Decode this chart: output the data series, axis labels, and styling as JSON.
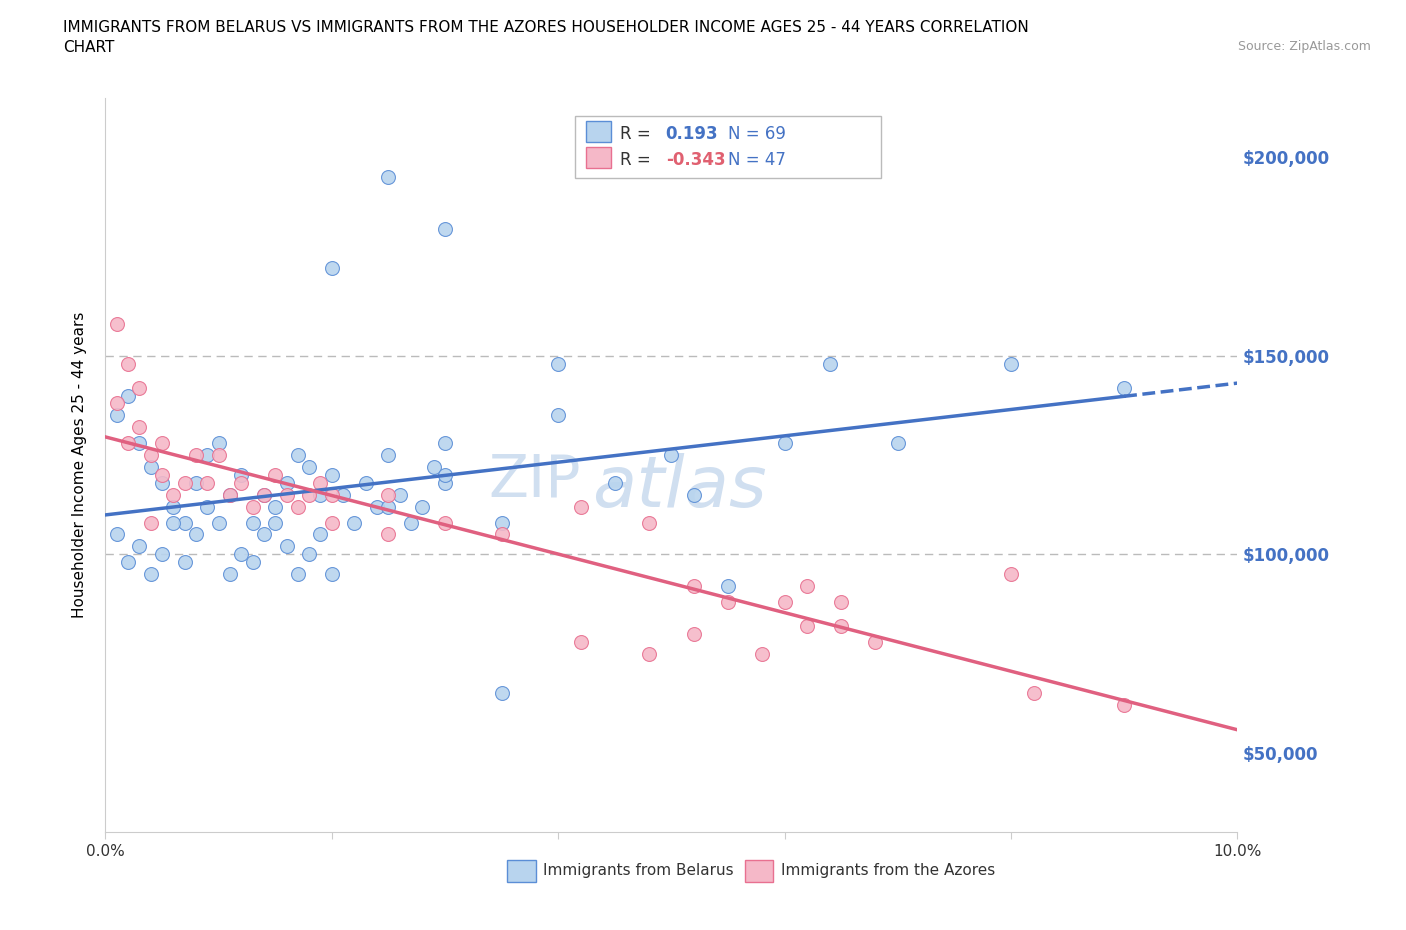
{
  "title_line1": "IMMIGRANTS FROM BELARUS VS IMMIGRANTS FROM THE AZORES HOUSEHOLDER INCOME AGES 25 - 44 YEARS CORRELATION",
  "title_line2": "CHART",
  "source": "Source: ZipAtlas.com",
  "ylabel": "Householder Income Ages 25 - 44 years",
  "xlim": [
    0.0,
    0.1
  ],
  "ylim": [
    30000,
    215000
  ],
  "yticks": [
    50000,
    100000,
    150000,
    200000
  ],
  "ytick_labels": [
    "$50,000",
    "$100,000",
    "$150,000",
    "$200,000"
  ],
  "xticks": [
    0.0,
    0.02,
    0.04,
    0.06,
    0.08,
    0.1
  ],
  "xtick_labels": [
    "0.0%",
    "",
    "",
    "",
    "",
    "10.0%"
  ],
  "r_belarus": 0.193,
  "n_belarus": 69,
  "r_azores": -0.343,
  "n_azores": 47,
  "color_belarus_fill": "#b8d4ee",
  "color_azores_fill": "#f5b8c8",
  "color_belarus_edge": "#5b8ed6",
  "color_azores_edge": "#e87090",
  "color_belarus_line": "#4472c4",
  "color_azores_line": "#e06080",
  "color_legend_r_blue": "#4472c4",
  "color_legend_r_pink": "#e06070",
  "color_legend_n": "#4472c4",
  "color_ytick_labels": "#4472c4",
  "color_watermark": "#d0dff0",
  "scatter_belarus_x": [
    0.001,
    0.002,
    0.003,
    0.004,
    0.005,
    0.006,
    0.007,
    0.008,
    0.009,
    0.01,
    0.011,
    0.012,
    0.013,
    0.014,
    0.015,
    0.016,
    0.017,
    0.018,
    0.019,
    0.02,
    0.021,
    0.022,
    0.023,
    0.024,
    0.025,
    0.026,
    0.027,
    0.028,
    0.029,
    0.03,
    0.001,
    0.002,
    0.003,
    0.004,
    0.005,
    0.006,
    0.007,
    0.008,
    0.009,
    0.01,
    0.011,
    0.012,
    0.013,
    0.014,
    0.015,
    0.016,
    0.017,
    0.018,
    0.019,
    0.02,
    0.025,
    0.03,
    0.035,
    0.04,
    0.02,
    0.025,
    0.03,
    0.035,
    0.04,
    0.03,
    0.045,
    0.05,
    0.052,
    0.055,
    0.06,
    0.064,
    0.07,
    0.08,
    0.09
  ],
  "scatter_belarus_y": [
    135000,
    140000,
    128000,
    122000,
    118000,
    112000,
    108000,
    118000,
    125000,
    128000,
    115000,
    120000,
    108000,
    115000,
    112000,
    118000,
    125000,
    122000,
    115000,
    120000,
    115000,
    108000,
    118000,
    112000,
    125000,
    115000,
    108000,
    112000,
    122000,
    118000,
    105000,
    98000,
    102000,
    95000,
    100000,
    108000,
    98000,
    105000,
    112000,
    108000,
    95000,
    100000,
    98000,
    105000,
    108000,
    102000,
    95000,
    100000,
    105000,
    95000,
    112000,
    120000,
    108000,
    135000,
    172000,
    195000,
    182000,
    65000,
    148000,
    128000,
    118000,
    125000,
    115000,
    92000,
    128000,
    148000,
    128000,
    148000,
    142000
  ],
  "scatter_azores_x": [
    0.001,
    0.002,
    0.003,
    0.004,
    0.005,
    0.006,
    0.007,
    0.008,
    0.009,
    0.01,
    0.011,
    0.012,
    0.013,
    0.014,
    0.015,
    0.016,
    0.017,
    0.018,
    0.019,
    0.02,
    0.001,
    0.002,
    0.003,
    0.004,
    0.005,
    0.02,
    0.025,
    0.025,
    0.03,
    0.035,
    0.042,
    0.048,
    0.052,
    0.055,
    0.06,
    0.062,
    0.065,
    0.068,
    0.042,
    0.048,
    0.052,
    0.058,
    0.062,
    0.065,
    0.08,
    0.082,
    0.09
  ],
  "scatter_azores_y": [
    138000,
    128000,
    132000,
    125000,
    120000,
    115000,
    118000,
    125000,
    118000,
    125000,
    115000,
    118000,
    112000,
    115000,
    120000,
    115000,
    112000,
    115000,
    118000,
    115000,
    158000,
    148000,
    142000,
    108000,
    128000,
    108000,
    115000,
    105000,
    108000,
    105000,
    112000,
    108000,
    92000,
    88000,
    88000,
    92000,
    82000,
    78000,
    78000,
    75000,
    80000,
    75000,
    82000,
    88000,
    95000,
    65000,
    62000
  ]
}
